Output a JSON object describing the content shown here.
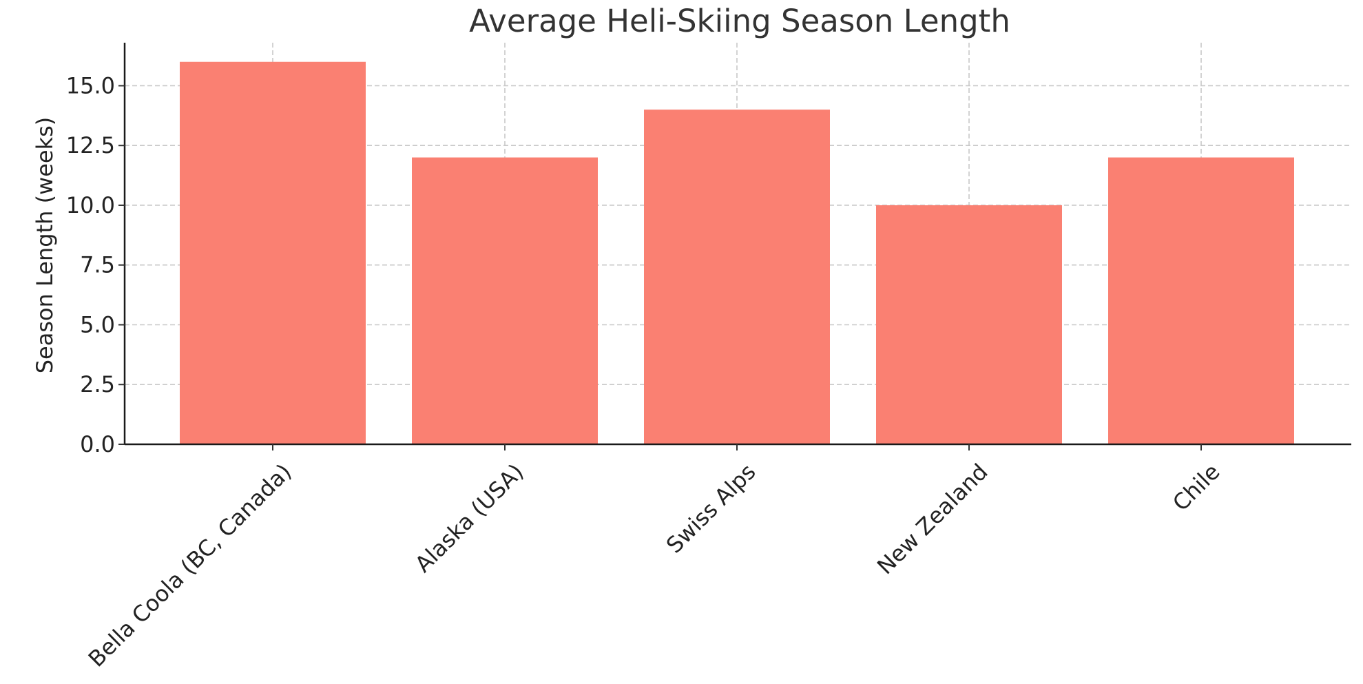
{
  "chart_data": {
    "type": "bar",
    "title": "Average Heli-Skiing Season Length",
    "xlabel": "",
    "ylabel": "Season Length (weeks)",
    "categories": [
      "Bella Coola (BC, Canada)",
      "Alaska (USA)",
      "Swiss Alps",
      "New Zealand",
      "Chile"
    ],
    "values": [
      16,
      12,
      14,
      10,
      12
    ],
    "ylim": [
      0,
      16.8
    ],
    "yticks": [
      0,
      2.5,
      5,
      7.5,
      10,
      12.5,
      15
    ],
    "ytick_labels": [
      "0.0",
      "2.5",
      "5.0",
      "7.5",
      "10.0",
      "12.5",
      "15.0"
    ],
    "bar_color": "#fa8072",
    "grid": true,
    "legend": "none",
    "xtick_rotation_deg": -45
  }
}
